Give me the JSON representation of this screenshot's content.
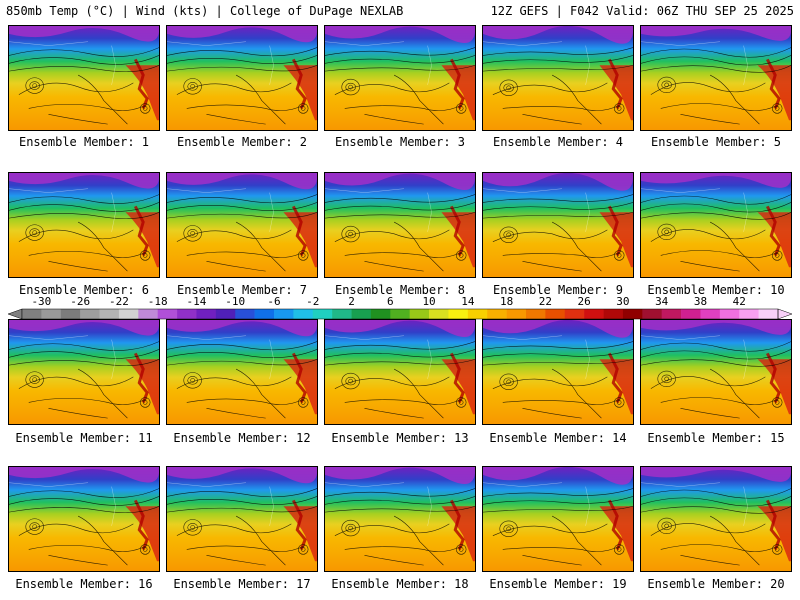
{
  "header": {
    "left_title": "850mb Temp (°C) | Wind (kts) | College of DuPage NEXLAB",
    "right_title": "12Z GEFS | F042 Valid: 06Z THU SEP 25 2025"
  },
  "members": [
    {
      "label": "Ensemble Member: 1"
    },
    {
      "label": "Ensemble Member: 2"
    },
    {
      "label": "Ensemble Member: 3"
    },
    {
      "label": "Ensemble Member: 4"
    },
    {
      "label": "Ensemble Member: 5"
    },
    {
      "label": "Ensemble Member: 6"
    },
    {
      "label": "Ensemble Member: 7"
    },
    {
      "label": "Ensemble Member: 8"
    },
    {
      "label": "Ensemble Member: 9"
    },
    {
      "label": "Ensemble Member: 10"
    },
    {
      "label": "Ensemble Member: 11"
    },
    {
      "label": "Ensemble Member: 12"
    },
    {
      "label": "Ensemble Member: 13"
    },
    {
      "label": "Ensemble Member: 14"
    },
    {
      "label": "Ensemble Member: 15"
    },
    {
      "label": "Ensemble Member: 16"
    },
    {
      "label": "Ensemble Member: 17"
    },
    {
      "label": "Ensemble Member: 18"
    },
    {
      "label": "Ensemble Member: 19"
    },
    {
      "label": "Ensemble Member: 20"
    }
  ],
  "colorbar": {
    "tick_labels": [
      "-30",
      "-26",
      "-22",
      "-18",
      "-14",
      "-10",
      "-6",
      "-2",
      "2",
      "6",
      "10",
      "14",
      "18",
      "22",
      "26",
      "30",
      "34",
      "38",
      "42"
    ],
    "colors": [
      "#808080",
      "#9a9a9a",
      "#7c7c7c",
      "#9e9e9e",
      "#b4b4b4",
      "#d2d2d2",
      "#c08ad8",
      "#b050d8",
      "#9030c8",
      "#7020c0",
      "#5020b8",
      "#2850d8",
      "#1070e8",
      "#1898f0",
      "#20c0e8",
      "#20d0c0",
      "#20b888",
      "#18a050",
      "#209020",
      "#50b020",
      "#98c818",
      "#d8e020",
      "#f8f010",
      "#f8d000",
      "#f8b000",
      "#f89800",
      "#f07800",
      "#e85000",
      "#e03010",
      "#d01010",
      "#b00808",
      "#900000",
      "#a01030",
      "#c01860",
      "#d02090",
      "#e040c0",
      "#f070e0",
      "#f8a0f0",
      "#f8d0f8"
    ],
    "temp_colors": {
      "cold": "#7020c0",
      "cool": "#2098f0",
      "mild": "#20c060",
      "warm": "#e8d020",
      "hot": "#f89800",
      "hottest": "#d82010"
    }
  }
}
